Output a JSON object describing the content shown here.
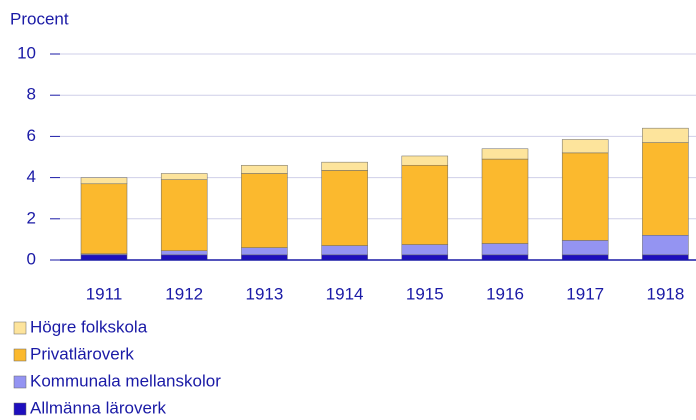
{
  "chart_data": {
    "type": "stacked_bar",
    "y_label": "Procent",
    "categories": [
      "1911",
      "1912",
      "1913",
      "1914",
      "1915",
      "1916",
      "1917",
      "1918"
    ],
    "series": [
      {
        "name": "Allmänna läroverk",
        "color": "#1e0fbe",
        "values": [
          0.25,
          0.25,
          0.25,
          0.25,
          0.25,
          0.25,
          0.25,
          0.25
        ]
      },
      {
        "name": "Kommunala mellanskolor",
        "color": "#9494f2",
        "values": [
          0.05,
          0.2,
          0.35,
          0.45,
          0.5,
          0.55,
          0.7,
          0.95
        ]
      },
      {
        "name": "Privatläroverk",
        "color": "#fbb92e",
        "values": [
          3.4,
          3.45,
          3.6,
          3.65,
          3.85,
          4.1,
          4.25,
          4.5
        ]
      },
      {
        "name": "Högre folkskola",
        "color": "#fde49c",
        "values": [
          0.3,
          0.3,
          0.4,
          0.4,
          0.45,
          0.5,
          0.65,
          0.7
        ]
      }
    ],
    "ylim": [
      0,
      10
    ],
    "yticks": [
      0,
      2,
      4,
      6,
      8,
      10
    ],
    "grid": true
  }
}
